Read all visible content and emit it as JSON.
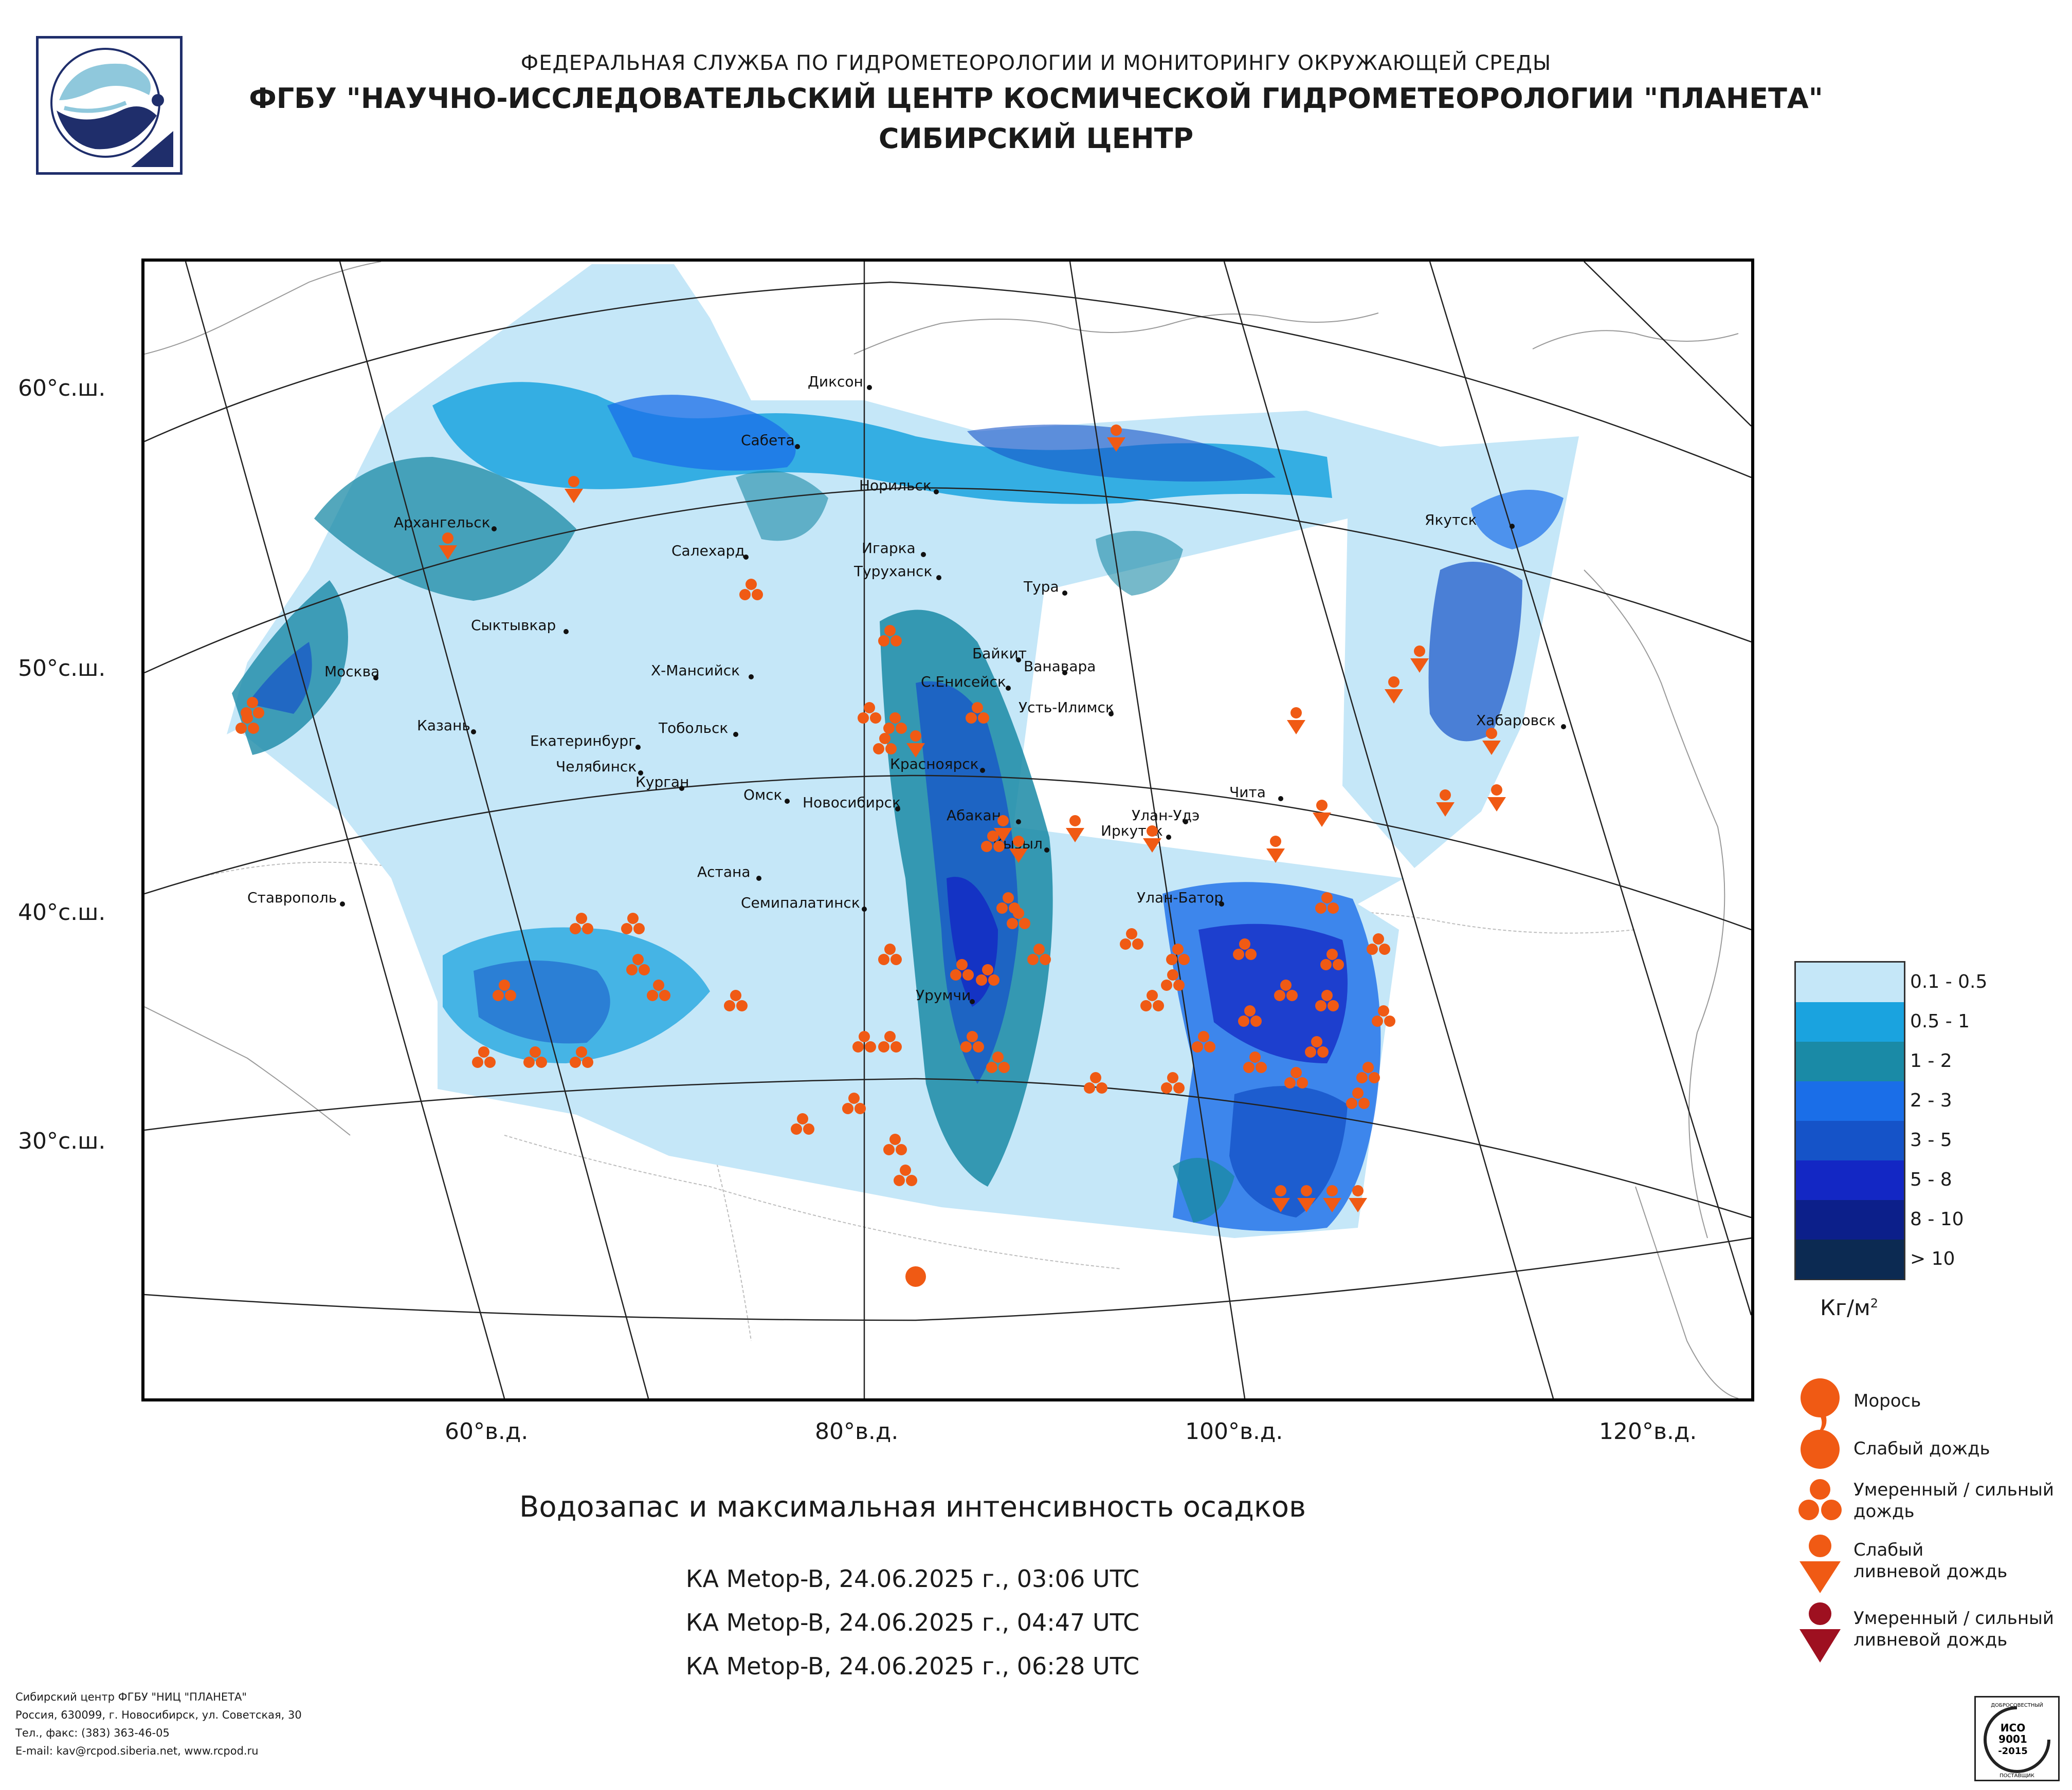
{
  "header": {
    "line1": "ФЕДЕРАЛЬНАЯ СЛУЖБА ПО ГИДРОМЕТЕОРОЛОГИИ И МОНИТОРИНГУ ОКРУЖАЮЩЕЙ СРЕДЫ",
    "line2": "ФГБУ \"НАУЧНО-ИССЛЕДОВАТЕЛЬСКИЙ ЦЕНТР КОСМИЧЕСКОЙ ГИДРОМЕТЕОРОЛОГИИ \"ПЛАНЕТА\"",
    "line3": "СИБИРСКИЙ ЦЕНТР"
  },
  "map": {
    "lat_labels": [
      "60°с.ш.",
      "50°с.ш.",
      "40°с.ш.",
      "30°с.ш."
    ],
    "lon_labels": [
      "60°в.д.",
      "80°в.д.",
      "100°в.д.",
      "120°в.д."
    ],
    "cities": [
      "Диксон",
      "Сабета",
      "Норильск",
      "Архангельск",
      "Салехард",
      "Игарка",
      "Якутск",
      "Туруханск",
      "Тура",
      "Сыктывкар",
      "Байкит",
      "Ванавара",
      "Х-Мансийск",
      "С.Енисейск",
      "Москва",
      "Усть-Илимск",
      "Хабаровск",
      "Казань",
      "Тобольск",
      "Екатеринбург",
      "Красноярск",
      "Челябинск",
      "Курган",
      "Чита",
      "Омск",
      "Новосибирск",
      "Абакан",
      "Улан-Удэ",
      "Иркутск",
      "Кызыл",
      "Астана",
      "Ставрополь",
      "Семипалатинск",
      "Улан-Батор",
      "Урумчи"
    ]
  },
  "legend": {
    "classes": [
      {
        "label": "0.1 - 0.5",
        "color": "#c5e7f8"
      },
      {
        "label": "0.5 - 1",
        "color": "#1aa3df"
      },
      {
        "label": "1 - 2",
        "color": "#1a8aa6"
      },
      {
        "label": "2 - 3",
        "color": "#1a6ee8"
      },
      {
        "label": "3 - 5",
        "color": "#1553c8"
      },
      {
        "label": "5 - 8",
        "color": "#1327c4"
      },
      {
        "label": "8 - 10",
        "color": "#0c1f8a"
      },
      {
        "label": "> 10",
        "color": "#0c2a52"
      }
    ],
    "units": "Кг/м",
    "units_sup": "2",
    "symbols": [
      {
        "label": "Морось",
        "icon": "drizzle-icon"
      },
      {
        "label": "Слабый дождь",
        "icon": "light-rain-icon"
      },
      {
        "label": "Умеренный / сильный дождь",
        "icon": "moderate-rain-icon"
      },
      {
        "label": "Слабый ливневой дождь",
        "icon": "light-shower-icon"
      },
      {
        "label": "Умеренный / сильный ливневой дождь",
        "icon": "heavy-shower-icon"
      }
    ],
    "symbol_colors": {
      "orange": "#f05a14",
      "dark_red": "#9e1020"
    }
  },
  "caption": "Водозапас и максимальная интенсивность осадков",
  "satellites": [
    "КА Metop-B, 24.06.2025 г., 03:06 UTC",
    "КА Metop-B, 24.06.2025 г., 04:47 UTC",
    "КА Metop-B, 24.06.2025 г., 06:28 UTC"
  ],
  "address": [
    "Сибирский центр ФГБУ \"НИЦ \"ПЛАНЕТА\"",
    "Россия, 630099, г. Новосибирск, ул. Советская, 30",
    "Тел., факс: (383) 363-46-05",
    "E-mail: kav@rcpod.siberia.net, www.rcpod.ru"
  ],
  "iso_badge": {
    "line1": "ДОБРОСОВЕСТНЫЙ",
    "line2": "ИСО",
    "line3": "9001",
    "line4": "-2015",
    "line5": "ПОСТАВЩИК"
  }
}
